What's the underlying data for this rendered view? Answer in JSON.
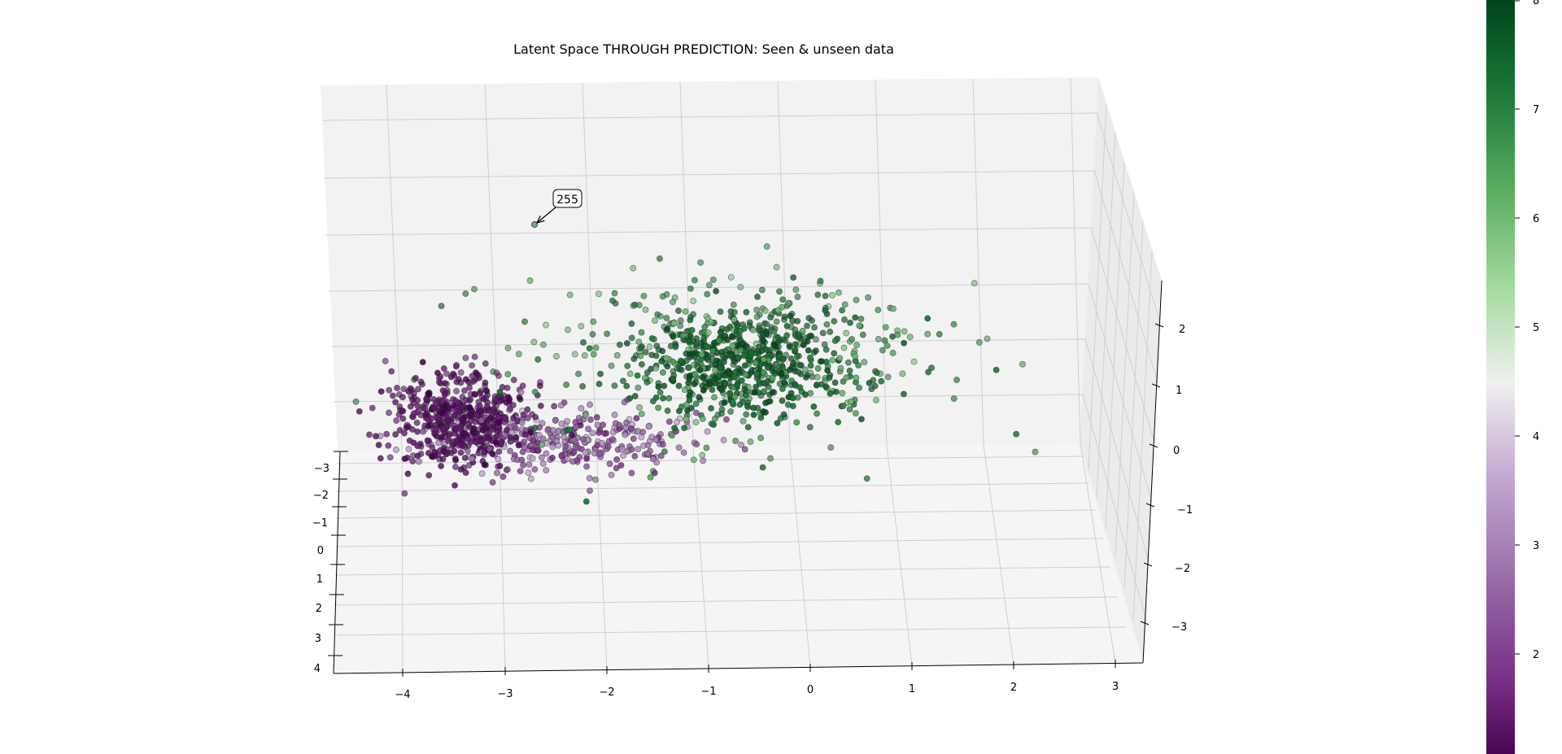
{
  "chart_data": {
    "type": "scatter",
    "projection": "3d",
    "title": "Latent Space THROUGH PREDICTION: Seen & unseen data",
    "x_axis": {
      "ticks": [
        "−4",
        "−3",
        "−2",
        "−1",
        "0",
        "1",
        "2",
        "3"
      ],
      "range": [
        -4.7,
        3.3
      ]
    },
    "y_axis": {
      "ticks": [
        "−3",
        "−2",
        "−1",
        "0",
        "1",
        "2",
        "3",
        "4"
      ],
      "range": [
        -3.5,
        4.5
      ]
    },
    "z_axis": {
      "ticks": [
        "−3",
        "−2",
        "−1",
        "0",
        "1",
        "2"
      ],
      "range": [
        -3.6,
        2.6
      ]
    },
    "grid": true,
    "colormap": "PRGn",
    "colorbar": {
      "ticks": [
        "1",
        "2",
        "3",
        "4",
        "5",
        "6",
        "7",
        "8"
      ],
      "range": [
        1,
        8
      ],
      "placement": "right"
    },
    "annotation": {
      "text": "255"
    },
    "clusters": [
      {
        "label_range": [
          1,
          1.6
        ],
        "center": [
          -3.6,
          0.0,
          0.45
        ],
        "spread": [
          0.35,
          0.8,
          0.35
        ],
        "count": 520
      },
      {
        "label_range": [
          1.6,
          3.6
        ],
        "center": [
          -2.5,
          0.2,
          0.1
        ],
        "spread": [
          0.7,
          0.7,
          0.25
        ],
        "count": 330
      },
      {
        "label_range": [
          7.2,
          8
        ],
        "center": [
          -0.7,
          -0.1,
          1.45
        ],
        "spread": [
          0.55,
          1.0,
          0.45
        ],
        "count": 560
      },
      {
        "label_range": [
          5.9,
          7.4
        ],
        "center": [
          -0.7,
          0.2,
          1.5
        ],
        "spread": [
          1.2,
          1.5,
          0.7
        ],
        "count": 330
      }
    ]
  }
}
